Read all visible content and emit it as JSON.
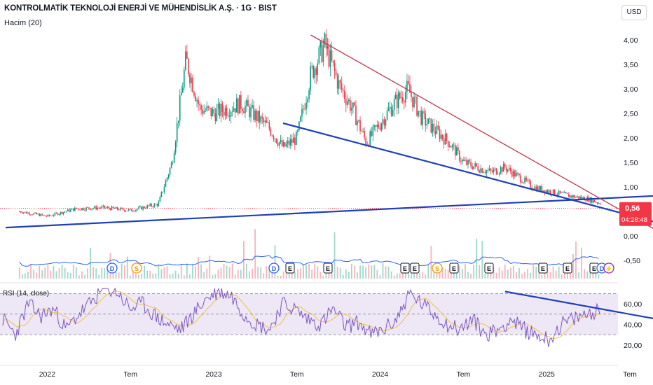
{
  "header": {
    "title": "KONTROLMATİK TEKNOLOJİ ENERJİ VE MÜHENDİSLİK A.Ş. · 1G · BIST",
    "indicator": "Hacim (20)",
    "currency": "USD"
  },
  "price_badge": {
    "price": "0,56",
    "countdown": "04:28:48",
    "color": "#f23645"
  },
  "rsi_title": "RSI (14, close)",
  "colors": {
    "up": "#089981",
    "down": "#f23645",
    "trend_blue": "#1e3fb8",
    "trend_red": "#c0394b",
    "vol_ma": "#2962ff",
    "rsi_line": "#7e57c2",
    "rsi_ma": "#f5c242",
    "rsi_band": "#ede7f6"
  },
  "event_markers": [
    {
      "label": "D",
      "type": "dividend"
    },
    {
      "label": "S",
      "type": "split"
    },
    {
      "label": "D",
      "type": "dividend"
    },
    {
      "label": "E",
      "type": "earnings"
    },
    {
      "label": "E",
      "type": "earnings"
    },
    {
      "label": "E",
      "type": "earnings"
    },
    {
      "label": "E",
      "type": "earnings"
    },
    {
      "label": "S",
      "type": "split"
    },
    {
      "label": "E",
      "type": "earnings"
    },
    {
      "label": "E",
      "type": "earnings"
    },
    {
      "label": "E",
      "type": "earnings"
    },
    {
      "label": "E",
      "type": "earnings"
    },
    {
      "label": "E",
      "type": "earnings"
    },
    {
      "label": "D",
      "type": "dividend"
    },
    {
      "label": "⚡",
      "type": "flash"
    }
  ],
  "chart_data": [
    {
      "type": "line",
      "title": "KONTROLMATİK TEKNOLOJİ ENERJİ VE MÜHENDİSLİK A.Ş. · 1G · BIST",
      "ylabel": "USD",
      "x_ticks": [
        "2022",
        "Tem",
        "2023",
        "Tem",
        "2024",
        "Tem",
        "2025",
        "Tem"
      ],
      "y_ticks": [
        "4,00",
        "3,50",
        "3,00",
        "2,50",
        "2,00",
        "1,50",
        "1,00",
        "0,50",
        "0,00",
        "-0,50"
      ],
      "ylim": [
        -0.5,
        4.0
      ],
      "series": [
        {
          "values": [
            {
              "x": "2021-11",
              "y": 0.5
            },
            {
              "x": "2022-01",
              "y": 0.4
            },
            {
              "x": "2022-03",
              "y": 0.55
            },
            {
              "x": "2022-05",
              "y": 0.58
            },
            {
              "x": "2022-07",
              "y": 0.52
            },
            {
              "x": "2022-09",
              "y": 0.65
            },
            {
              "x": "2022-10",
              "y": 1.5
            },
            {
              "x": "2022-11",
              "y": 3.6
            },
            {
              "x": "2022-12",
              "y": 2.6
            },
            {
              "x": "2023-01",
              "y": 2.5
            },
            {
              "x": "2023-03",
              "y": 2.7
            },
            {
              "x": "2023-05",
              "y": 2.2
            },
            {
              "x": "2023-06",
              "y": 1.8
            },
            {
              "x": "2023-07",
              "y": 2.0
            },
            {
              "x": "2023-08",
              "y": 3.3
            },
            {
              "x": "2023-09",
              "y": 3.9
            },
            {
              "x": "2023-10",
              "y": 3.1
            },
            {
              "x": "2023-11",
              "y": 2.6
            },
            {
              "x": "2023-12",
              "y": 1.9
            },
            {
              "x": "2024-02",
              "y": 2.7
            },
            {
              "x": "2024-03",
              "y": 3.0
            },
            {
              "x": "2024-04",
              "y": 2.4
            },
            {
              "x": "2024-06",
              "y": 1.9
            },
            {
              "x": "2024-07",
              "y": 1.5
            },
            {
              "x": "2024-09",
              "y": 1.3
            },
            {
              "x": "2024-10",
              "y": 1.4
            },
            {
              "x": "2024-12",
              "y": 1.0
            },
            {
              "x": "2025-02",
              "y": 0.85
            },
            {
              "x": "2025-04",
              "y": 0.75
            },
            {
              "x": "2025-06",
              "y": 0.55
            },
            {
              "x": "2025-07",
              "y": 0.56
            }
          ]
        }
      ],
      "trendlines": [
        {
          "color": "#1e3fb8",
          "from": {
            "x": "2021-10",
            "y": 0.17
          },
          "to": {
            "x": "2025-09",
            "y": 0.82
          }
        },
        {
          "color": "#1e3fb8",
          "from": {
            "x": "2023-06",
            "y": 2.3
          },
          "to": {
            "x": "2025-09",
            "y": 0.27
          }
        },
        {
          "color": "#c0394b",
          "from": {
            "x": "2023-08",
            "y": 4.1
          },
          "to": {
            "x": "2025-09",
            "y": 0.1
          }
        }
      ],
      "last_value": 0.56
    },
    {
      "type": "line",
      "title": "RSI (14, close)",
      "y_ticks": [
        "60,00",
        "40,00",
        "20,00"
      ],
      "ylim": [
        15,
        75
      ],
      "bands": [
        70,
        50,
        30
      ],
      "series": [
        {
          "values": [
            45,
            30,
            60,
            48,
            55,
            35,
            50,
            62,
            75,
            72,
            55,
            60,
            48,
            40,
            35,
            50,
            65,
            72,
            68,
            50,
            40,
            35,
            60,
            55,
            45,
            40,
            55,
            38,
            42,
            30,
            35,
            45,
            70,
            60,
            50,
            40,
            35,
            45,
            30,
            35,
            45,
            35,
            30,
            25,
            40,
            45,
            50,
            55
          ]
        }
      ],
      "trendlines": [
        {
          "color": "#1e3fb8",
          "from": {
            "x": "2024-10",
            "y": 72
          },
          "to": {
            "x": "2025-09",
            "y": 45
          }
        }
      ]
    }
  ]
}
